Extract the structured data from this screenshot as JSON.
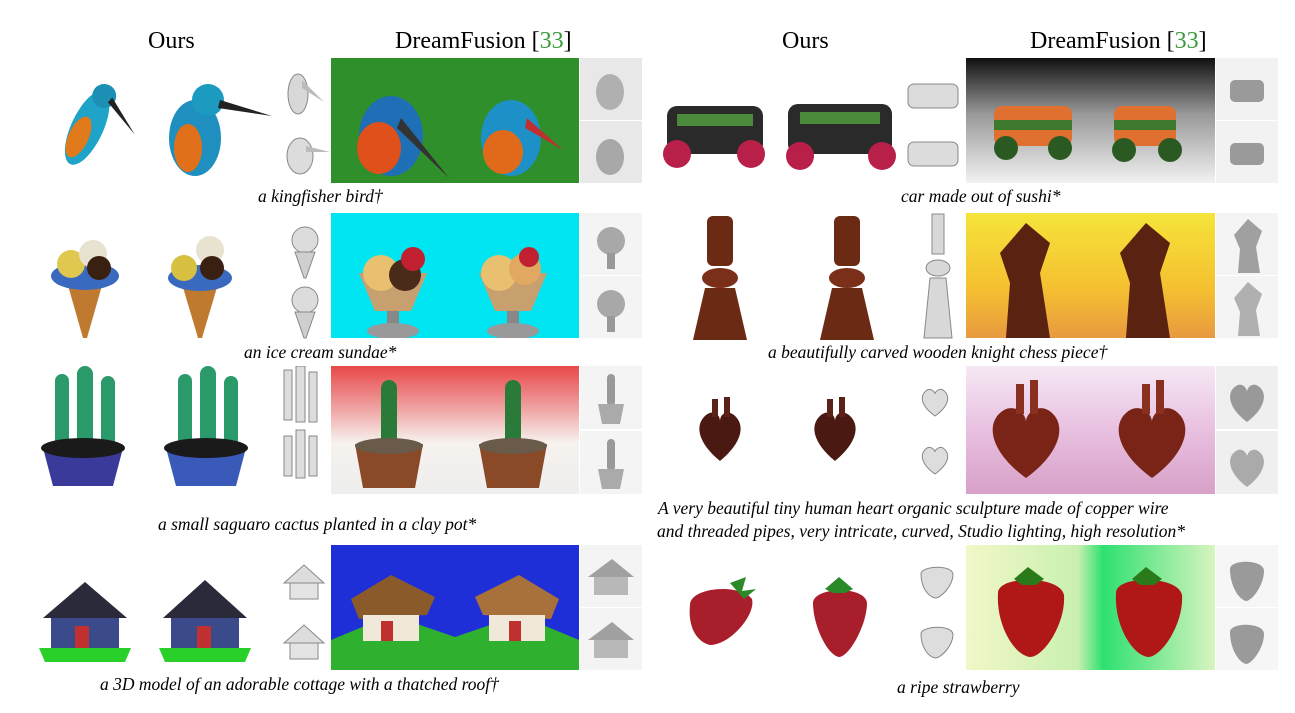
{
  "headers": {
    "ours_left": "Ours",
    "df_left_name": "DreamFusion [",
    "df_left_ref": "33",
    "df_left_close": "]",
    "ours_right": "Ours",
    "df_right_name": "DreamFusion [",
    "df_right_ref": "33",
    "df_right_close": "]"
  },
  "captions": {
    "kingfisher": "a kingfisher bird†",
    "sushi_car": "car made out of sushi*",
    "sundae": "an ice cream sundae*",
    "chess": "a beautifully carved wooden knight chess piece†",
    "cactus": "a small saguaro cactus planted in a clay pot*",
    "heart_line1": "A very beautiful tiny human heart organic sculpture made of copper wire",
    "heart_line2": "and threaded pipes, very intricate, curved, Studio lighting, high resolution*",
    "cottage": "a 3D model of an adorable cottage with a thatched roof†",
    "strawberry": "a ripe strawberry"
  },
  "colors": {
    "reference_green": "#3a9a3a",
    "df_bg_green": "#2f8f2a",
    "df_bg_cyan": "#00e5f2",
    "df_bg_blue": "#1f2fd8",
    "df_bg_yellow": "#f5e43a"
  }
}
